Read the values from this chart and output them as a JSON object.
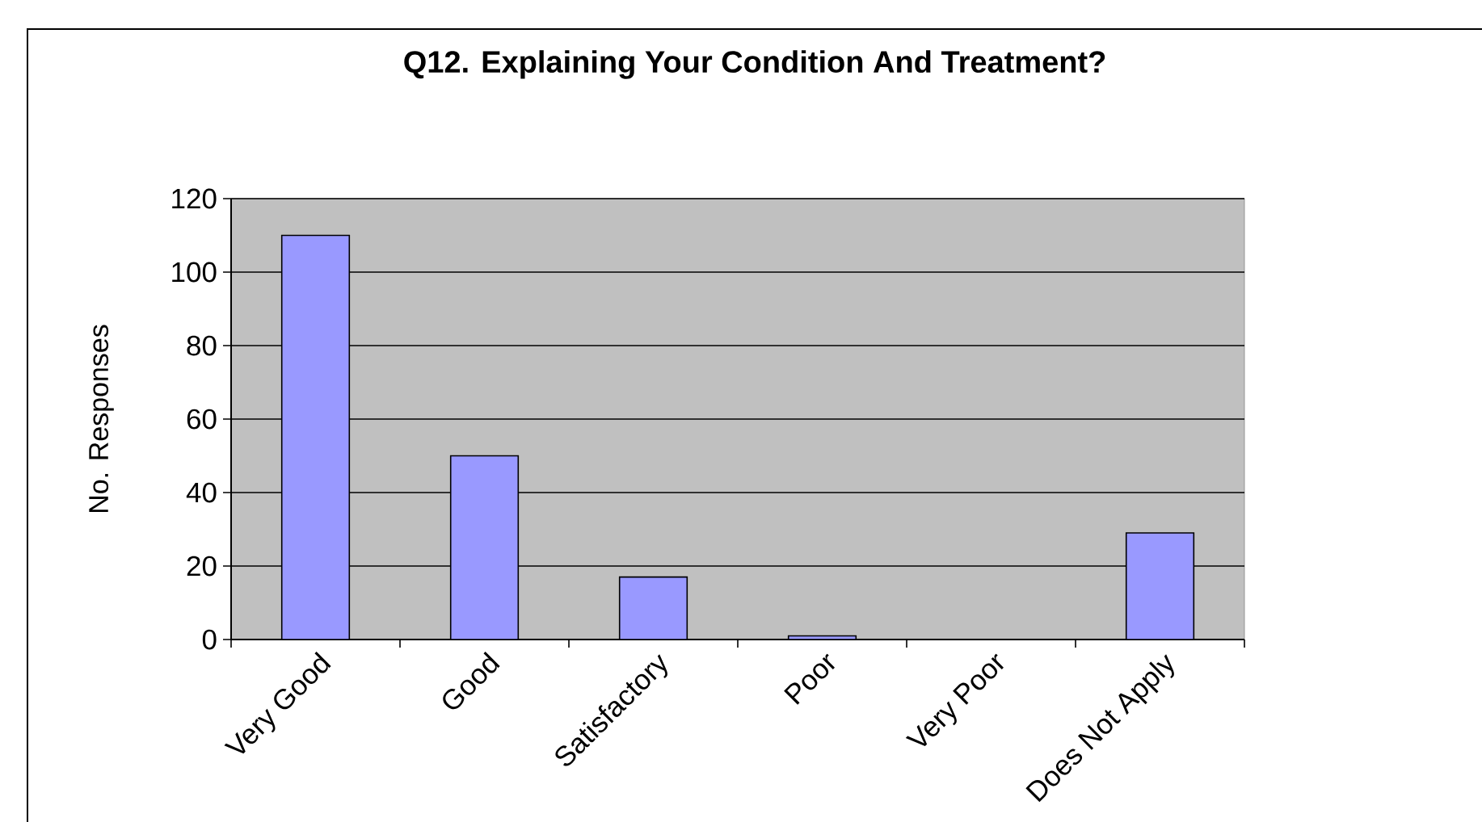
{
  "chart_data": {
    "type": "bar",
    "title": "Q12. Explaining Your Condition And Treatment?",
    "ylabel": "No. Responses",
    "categories": [
      "Very Good",
      "Good",
      "Satisfactory",
      "Poor",
      "Very Poor",
      "Does Not Apply"
    ],
    "values": [
      110,
      50,
      17,
      1,
      0,
      29
    ],
    "color": "#9999ff",
    "ylim": [
      0,
      120
    ],
    "yticks": [
      0,
      20,
      40,
      60,
      80,
      100,
      120
    ],
    "grid": "y"
  }
}
